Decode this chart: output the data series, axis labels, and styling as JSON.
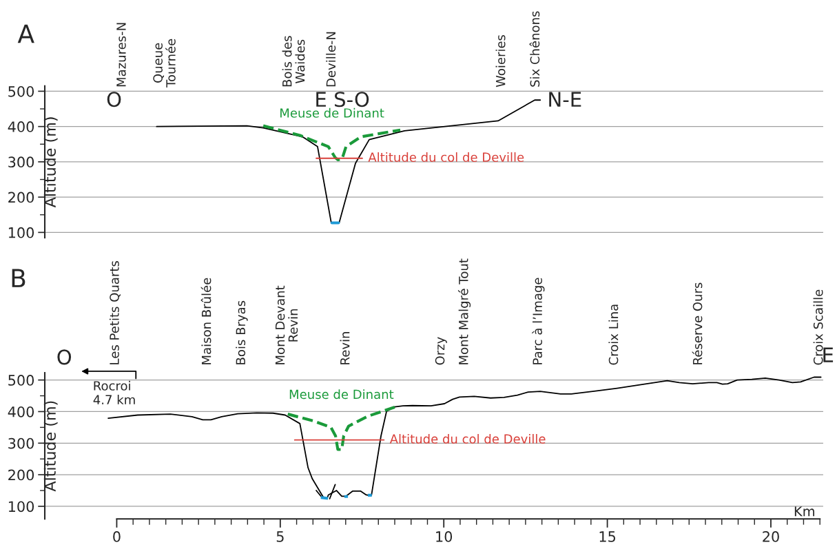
{
  "chart_data": [
    {
      "type": "line",
      "title": "A",
      "ylabel": "Altitude (m)",
      "xlim": [
        -2.2,
        21.6
      ],
      "ylim": [
        85,
        515
      ],
      "tick_labels": "y",
      "grid": "y",
      "yticks": [
        100,
        {
          "value": 150,
          "label": null
        },
        200,
        {
          "value": 250,
          "label": null
        },
        300,
        {
          "value": 350,
          "label": null
        },
        400,
        {
          "value": 450,
          "label": null
        },
        500
      ],
      "annotations": [
        "Mazures-N",
        "Queue\nTournée",
        "Bois des\nWaides",
        "Deville-N",
        "Woieries",
        "Six Chênons",
        "O",
        "E S-O",
        "N-E"
      ],
      "series": [
        {
          "color": "#000000",
          "x": [
            1.22,
            3.98,
            4.48,
            5.68,
            6.14,
            6.56,
            6.8,
            7.3,
            7.72,
            8.8,
            11.66,
            12.78,
            12.95
          ],
          "values": [
            400,
            402,
            396,
            371,
            343,
            127,
            127,
            296,
            363,
            388,
            416,
            475,
            475
          ]
        },
        {
          "color": "#1e9ad6",
          "x": [
            6.58,
            6.78
          ],
          "values": [
            127,
            127
          ]
        },
        {
          "name": "Meuse de Dinant",
          "color": "#1a9a3a",
          "line_style": "dashed",
          "x": [
            4.48,
            5.6,
            6.47,
            6.68,
            6.76,
            6.89,
            7.01,
            7.47,
            8.67
          ],
          "values": [
            402,
            375,
            343,
            312,
            306,
            308,
            343,
            371,
            390
          ]
        },
        {
          "name": "Altitude du col de Deville",
          "color": "#d9403a",
          "x": [
            6.1,
            7.51
          ],
          "values": [
            310,
            310
          ]
        }
      ]
    },
    {
      "type": "line",
      "title": "B",
      "ylabel": "Altitude (m)",
      "xlabel": "Km",
      "xlim": [
        -2.2,
        21.6
      ],
      "ylim": [
        60,
        523
      ],
      "grid": "y",
      "xticks": [
        0,
        {
          "value": 0.5,
          "label": null
        },
        {
          "value": 1,
          "label": null
        },
        {
          "value": 1.5,
          "label": null
        },
        {
          "value": 2,
          "label": null
        },
        {
          "value": 2.5,
          "label": null
        },
        {
          "value": 3,
          "label": null
        },
        {
          "value": 3.5,
          "label": null
        },
        {
          "value": 4,
          "label": null
        },
        {
          "value": 4.5,
          "label": null
        },
        5,
        {
          "value": 5.5,
          "label": null
        },
        {
          "value": 6,
          "label": null
        },
        {
          "value": 6.5,
          "label": null
        },
        {
          "value": 7,
          "label": null
        },
        {
          "value": 7.5,
          "label": null
        },
        {
          "value": 8,
          "label": null
        },
        {
          "value": 8.5,
          "label": null
        },
        {
          "value": 9,
          "label": null
        },
        {
          "value": 9.5,
          "label": null
        },
        10,
        {
          "value": 10.5,
          "label": null
        },
        {
          "value": 11,
          "label": null
        },
        {
          "value": 11.5,
          "label": null
        },
        {
          "value": 12,
          "label": null
        },
        {
          "value": 12.5,
          "label": null
        },
        {
          "value": 13,
          "label": null
        },
        {
          "value": 13.5,
          "label": null
        },
        {
          "value": 14,
          "label": null
        },
        {
          "value": 14.5,
          "label": null
        },
        15,
        {
          "value": 15.5,
          "label": null
        },
        {
          "value": 16,
          "label": null
        },
        {
          "value": 16.5,
          "label": null
        },
        {
          "value": 17,
          "label": null
        },
        {
          "value": 17.5,
          "label": null
        },
        {
          "value": 18,
          "label": null
        },
        {
          "value": 18.5,
          "label": null
        },
        {
          "value": 19,
          "label": null
        },
        {
          "value": 19.5,
          "label": null
        },
        20,
        {
          "value": 20.5,
          "label": null
        },
        {
          "value": 21,
          "label": null
        },
        {
          "value": 21.5,
          "label": null
        }
      ],
      "yticks": [
        100,
        {
          "value": 150,
          "label": null
        },
        200,
        {
          "value": 250,
          "label": null
        },
        300,
        {
          "value": 350,
          "label": null
        },
        400,
        {
          "value": 450,
          "label": null
        },
        500
      ],
      "annotations": [
        "Les Petits Quarts",
        "Maison Brûlée",
        "Bois Bryas",
        "Mont Devant\nRevin",
        "Revin",
        "Orzy",
        "Mont Malgré Tout",
        "Parc à l’Image",
        "Croix Lina",
        "Réserve Ours",
        "Croix Scaille",
        "O",
        "E",
        "Rocroi\n4.7 km"
      ],
      "series": [
        {
          "color": "#000000",
          "x": [
            -0.26,
            0.64,
            1.64,
            2.3,
            2.63,
            2.88,
            3.21,
            3.7,
            4.28,
            4.78,
            5.15,
            5.6,
            5.85,
            5.98,
            6.31,
            6.43,
            6.47,
            6.72,
            6.88,
            7.01,
            7.21,
            7.46,
            7.63,
            7.75,
            7.79,
            8.08,
            8.25,
            8.5,
            8.75,
            9.04,
            9.61,
            10.02,
            10.27,
            10.48,
            10.93,
            11.43,
            11.84,
            12.25,
            12.58,
            12.95,
            13.57,
            13.9,
            14.64,
            15.3,
            16.13,
            16.83,
            17.2,
            17.61,
            18.1,
            18.35,
            18.52,
            18.68,
            18.97,
            19.42,
            19.83,
            20.25,
            20.66,
            20.91,
            21.32,
            21.53
          ],
          "values": [
            379,
            389,
            392,
            384,
            374,
            374,
            384,
            393,
            396,
            395,
            389,
            362,
            222,
            187,
            130,
            124,
            136,
            150,
            132,
            132,
            148,
            148,
            136,
            134,
            136,
            323,
            401,
            415,
            418,
            419,
            418,
            425,
            439,
            446,
            448,
            443,
            445,
            452,
            462,
            464,
            456,
            456,
            465,
            474,
            487,
            498,
            492,
            488,
            492,
            492,
            487,
            488,
            500,
            502,
            506,
            500,
            492,
            494,
            509,
            509
          ]
        },
        {
          "color": "#000000",
          "x": [
            6.1,
            6.26
          ],
          "values": [
            150,
            130
          ]
        },
        {
          "color": "#000000",
          "x": [
            6.51,
            6.68
          ],
          "values": [
            124,
            169
          ]
        },
        {
          "color": "#1e9ad6",
          "x": [
            6.24,
            6.46,
            6.6,
            6.96,
            7.07,
            7.3,
            7.68,
            7.8
          ],
          "values": [
            128,
            125,
            null,
            131,
            131,
            null,
            135,
            135
          ]
        },
        {
          "name": "Meuse de Dinant",
          "color": "#1a9a3a",
          "line_style": "dashed",
          "x": [
            5.23,
            6.02,
            6.55,
            6.69,
            6.76,
            6.88,
            6.94,
            7.09,
            7.67,
            8.5
          ],
          "values": [
            392,
            370,
            350,
            323,
            280,
            280,
            323,
            354,
            385,
            414
          ]
        },
        {
          "name": "Altitude du col de Deville",
          "color": "#d9403a",
          "x": [
            5.44,
            8.17
          ],
          "values": [
            310,
            310
          ]
        }
      ]
    }
  ]
}
